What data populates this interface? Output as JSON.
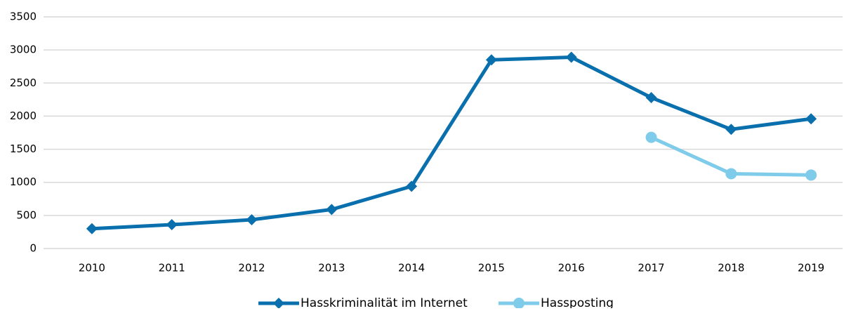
{
  "chart_data": {
    "type": "line",
    "categories": [
      "2010",
      "2011",
      "2012",
      "2013",
      "2014",
      "2015",
      "2016",
      "2017",
      "2018",
      "2019"
    ],
    "series": [
      {
        "name": "Hasskriminalität im Internet",
        "color": "#0a6fad",
        "marker": "diamond",
        "values": [
          300,
          360,
          435,
          590,
          940,
          2850,
          2890,
          2280,
          1800,
          1960
        ]
      },
      {
        "name": "Hassposting",
        "color": "#7fcbea",
        "marker": "circle",
        "values": [
          null,
          null,
          null,
          null,
          null,
          null,
          null,
          1680,
          1130,
          1110
        ]
      }
    ],
    "ylim": [
      0,
      3500
    ],
    "yticks": [
      0,
      500,
      1000,
      1500,
      2000,
      2500,
      3000,
      3500
    ],
    "grid": true,
    "legend": "bottom"
  }
}
